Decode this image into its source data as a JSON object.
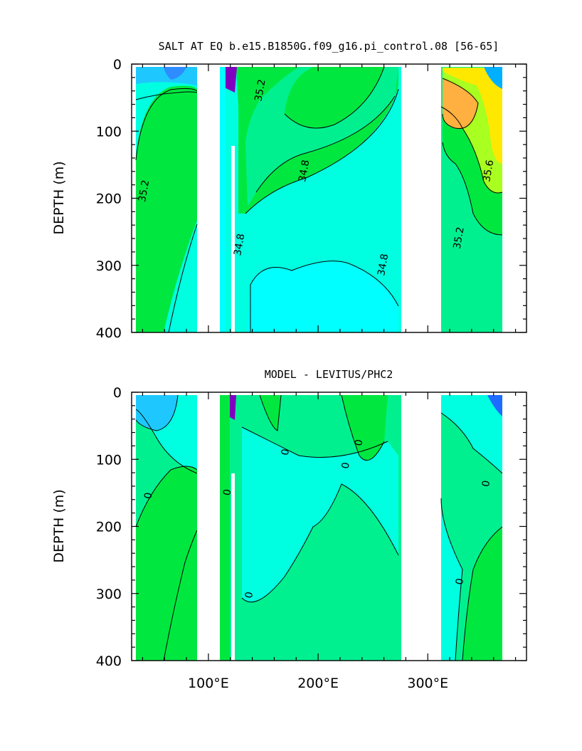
{
  "chart_data": [
    {
      "type": "heatmap",
      "title": "SALT AT EQ b.e15.B1850G.f09_g16.pi_control.08 [56-65]",
      "ylabel": "DEPTH (m)",
      "y_ticks": [
        "0",
        "100",
        "200",
        "300",
        "400"
      ],
      "x_ticks": [],
      "ylim": [
        400,
        0
      ],
      "xlim": [
        30,
        390
      ],
      "y_reversed": true,
      "land_gaps_x": [
        [
          97,
          117
        ],
        [
          277,
          314
        ]
      ],
      "contour_labels": [
        {
          "text": "35.2",
          "x": 150,
          "y": 40
        },
        {
          "text": "35.2",
          "x": 44,
          "y": 190
        },
        {
          "text": "34.8",
          "x": 190,
          "y": 160
        },
        {
          "text": "34.8",
          "x": 131,
          "y": 270
        },
        {
          "text": "34.8",
          "x": 262,
          "y": 300
        },
        {
          "text": "35.6",
          "x": 358,
          "y": 160
        },
        {
          "text": "35.2",
          "x": 331,
          "y": 260
        }
      ],
      "colors": {
        "low_dark": "#2860e8",
        "low": "#1ec8ff",
        "mid_low": "#00ffe0",
        "mid": "#00f090",
        "mid_high": "#00e840",
        "high": "#a8ff20",
        "higher": "#ffe800",
        "highest": "#ffb040",
        "extreme": "#8000c0"
      }
    },
    {
      "type": "heatmap",
      "title": "MODEL - LEVITUS/PHC2",
      "ylabel": "DEPTH (m)",
      "y_ticks": [
        "0",
        "100",
        "200",
        "300",
        "400"
      ],
      "x_ticks": [
        "100°E",
        "200°E",
        "300°E"
      ],
      "ylim": [
        400,
        0
      ],
      "xlim": [
        30,
        390
      ],
      "y_reversed": true,
      "land_gaps_x": [
        [
          97,
          117
        ],
        [
          277,
          314
        ]
      ],
      "contour_labels": [
        {
          "text": "0",
          "x": 173,
          "y": 90
        },
        {
          "text": "0",
          "x": 228,
          "y": 110
        },
        {
          "text": "0",
          "x": 240,
          "y": 76
        },
        {
          "text": "0",
          "x": 120,
          "y": 150
        },
        {
          "text": "0",
          "x": 48,
          "y": 155
        },
        {
          "text": "0",
          "x": 356,
          "y": 137
        },
        {
          "text": "0",
          "x": 332,
          "y": 283
        },
        {
          "text": "0",
          "x": 140,
          "y": 303
        }
      ],
      "colors": {
        "low": "#1ec8ff",
        "mid_low": "#00ffe0",
        "mid": "#00f090",
        "mid_high": "#00e840",
        "extreme": "#8000c0"
      }
    }
  ]
}
